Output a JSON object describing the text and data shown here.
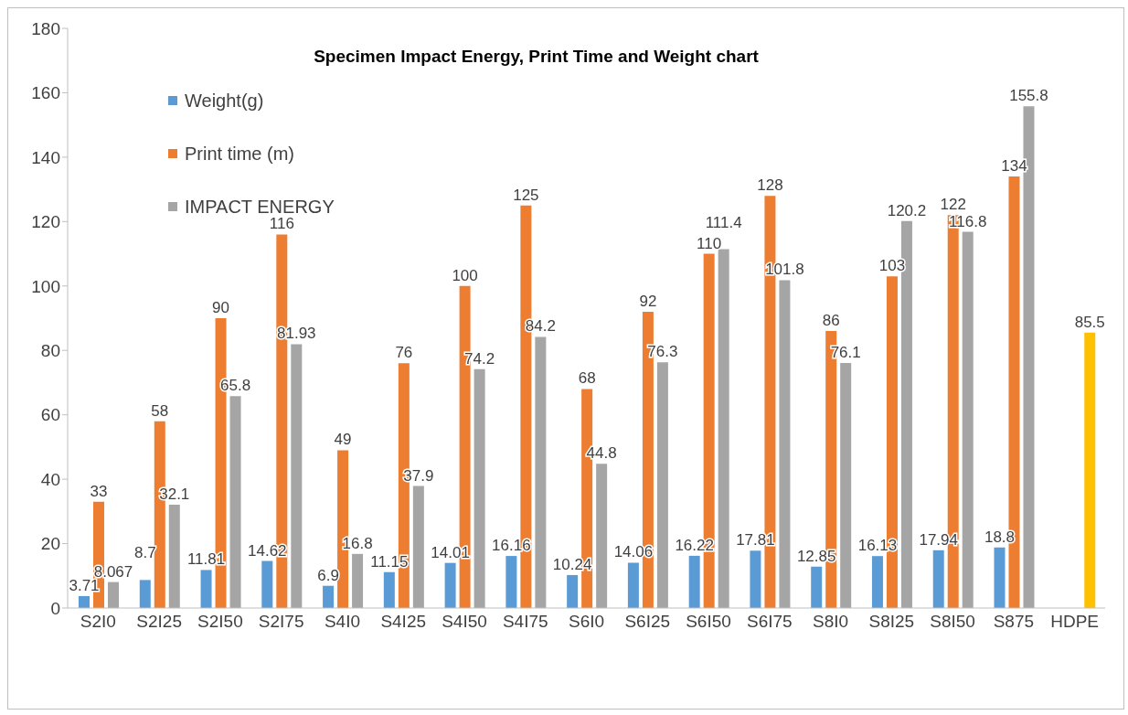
{
  "chart_data": {
    "type": "bar",
    "title": "Specimen Impact Energy, Print Time and Weight chart",
    "categories": [
      "S2I0",
      "S2I25",
      "S2I50",
      "S2I75",
      "S4I0",
      "S4I25",
      "S4I50",
      "S4I75",
      "S6I0",
      "S6I25",
      "S6I50",
      "S6I75",
      "S8I0",
      "S8I25",
      "S8I50",
      "S875",
      "HDPE"
    ],
    "series": [
      {
        "name": "Weight(g)",
        "color": "#5b9bd5",
        "values": [
          3.71,
          8.7,
          11.81,
          14.62,
          6.9,
          11.15,
          14.01,
          16.16,
          10.24,
          14.06,
          16.22,
          17.81,
          12.85,
          16.13,
          17.94,
          18.8,
          null
        ]
      },
      {
        "name": "Print time (m)",
        "color": "#ed7d31",
        "values": [
          33,
          58,
          90,
          116,
          49,
          76,
          100,
          125,
          68,
          92,
          110,
          128,
          86,
          103,
          122,
          134,
          null
        ]
      },
      {
        "name": "IMPACT ENERGY",
        "color": "#a5a5a5",
        "colors": [
          "#a5a5a5",
          "#a5a5a5",
          "#a5a5a5",
          "#a5a5a5",
          "#a5a5a5",
          "#a5a5a5",
          "#a5a5a5",
          "#a5a5a5",
          "#a5a5a5",
          "#a5a5a5",
          "#a5a5a5",
          "#a5a5a5",
          "#a5a5a5",
          "#a5a5a5",
          "#a5a5a5",
          "#a5a5a5",
          "#ffc000"
        ],
        "values": [
          8.067,
          32.1,
          65.8,
          81.93,
          16.8,
          37.9,
          74.2,
          84.2,
          44.8,
          76.3,
          111.4,
          101.8,
          76.1,
          120.2,
          116.8,
          155.8,
          85.5
        ]
      }
    ],
    "ylim": [
      0,
      180
    ],
    "yticks": [
      0,
      20,
      40,
      60,
      80,
      100,
      120,
      140,
      160,
      180
    ],
    "grid": false,
    "legend": "top left",
    "data_labels": true
  }
}
